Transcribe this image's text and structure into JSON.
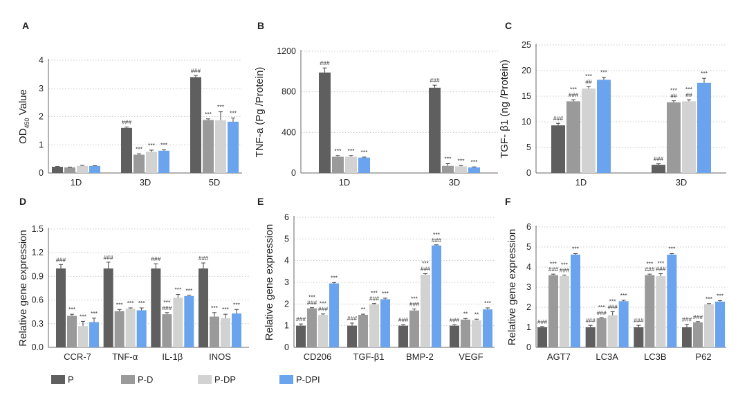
{
  "colors": {
    "P": "#5f5f5f",
    "P-D": "#9a9a9a",
    "P-DP": "#d2d2d2",
    "P-DPI": "#6aa3ee"
  },
  "legend": [
    "P",
    "P-D",
    "P-DP",
    "P-DPI"
  ],
  "chart_data": [
    {
      "panel": "A",
      "type": "bar",
      "ylabel": "OD450 Value",
      "ylim": [
        0,
        4
      ],
      "yticks": [
        0,
        1,
        2,
        3,
        4
      ],
      "categories": [
        "1D",
        "3D",
        "5D"
      ],
      "series": [
        {
          "name": "P",
          "values": [
            0.22,
            1.6,
            3.4
          ],
          "err": [
            0.01,
            0.03,
            0.06
          ],
          "sig": [
            "",
            "###",
            "###"
          ]
        },
        {
          "name": "P-D",
          "values": [
            0.2,
            0.65,
            1.88
          ],
          "err": [
            0.01,
            0.03,
            0.04
          ],
          "sig": [
            "",
            "***",
            "***"
          ]
        },
        {
          "name": "P-DP",
          "values": [
            0.25,
            0.75,
            1.87
          ],
          "err": [
            0.02,
            0.06,
            0.3
          ],
          "sig": [
            "",
            "***",
            "***"
          ]
        },
        {
          "name": "P-DPI",
          "values": [
            0.25,
            0.79,
            1.82
          ],
          "err": [
            0.01,
            0.03,
            0.13
          ],
          "sig": [
            "",
            "***",
            "***"
          ]
        }
      ]
    },
    {
      "panel": "B",
      "type": "bar",
      "ylabel": "TNF-a (Pg /Protein)",
      "ylim": [
        0,
        1200
      ],
      "yticks": [
        0,
        400,
        800,
        1200
      ],
      "categories": [
        "1D",
        "3D"
      ],
      "series": [
        {
          "name": "P",
          "values": [
            990,
            840
          ],
          "err": [
            45,
            25
          ],
          "sig": [
            "###",
            "###"
          ]
        },
        {
          "name": "P-D",
          "values": [
            160,
            70
          ],
          "err": [
            12,
            22
          ],
          "sig": [
            "***",
            "***"
          ]
        },
        {
          "name": "P-DP",
          "values": [
            160,
            65
          ],
          "err": [
            12,
            8
          ],
          "sig": [
            "***",
            "***"
          ]
        },
        {
          "name": "P-DPI",
          "values": [
            152,
            55
          ],
          "err": [
            5,
            5
          ],
          "sig": [
            "***",
            "***"
          ]
        }
      ]
    },
    {
      "panel": "C",
      "type": "bar",
      "ylabel": "TGF- β1 (ng /Protein)",
      "ylim": [
        0,
        25
      ],
      "yticks": [
        0,
        5,
        10,
        15,
        20,
        25
      ],
      "categories": [
        "1D",
        "3D"
      ],
      "series": [
        {
          "name": "P",
          "values": [
            9.3,
            1.6
          ],
          "err": [
            0.4,
            0.2
          ],
          "sig": [
            "###",
            "###"
          ]
        },
        {
          "name": "P-D",
          "values": [
            14.0,
            13.8
          ],
          "err": [
            0.3,
            0.3
          ],
          "sig": [
            "***\n###",
            "***\n##"
          ]
        },
        {
          "name": "P-DP",
          "values": [
            16.5,
            14.0
          ],
          "err": [
            0.4,
            0.3
          ],
          "sig": [
            "***\n##",
            "***\n##"
          ]
        },
        {
          "name": "P-DPI",
          "values": [
            18.2,
            17.6
          ],
          "err": [
            0.5,
            0.9
          ],
          "sig": [
            "***",
            "***"
          ]
        }
      ]
    },
    {
      "panel": "D",
      "type": "bar",
      "ylabel": "Relative gene expression",
      "ylim": [
        0,
        1.5
      ],
      "yticks": [
        "0.0",
        "0.3",
        "0.6",
        "0.9",
        "1.2",
        "1.5"
      ],
      "categories": [
        "CCR-7",
        "TNF-α",
        "IL-1β",
        "INOS"
      ],
      "series": [
        {
          "name": "P",
          "values": [
            1.0,
            1.0,
            1.0,
            1.0
          ],
          "err": [
            0.05,
            0.08,
            0.06,
            0.07
          ],
          "sig": [
            "###",
            "###",
            "###",
            "###"
          ]
        },
        {
          "name": "P-D",
          "values": [
            0.4,
            0.46,
            0.42,
            0.39
          ],
          "err": [
            0.02,
            0.02,
            0.02,
            0.05
          ],
          "sig": [
            "***",
            "***",
            "***\n###",
            "***"
          ]
        },
        {
          "name": "P-DP",
          "values": [
            0.27,
            0.49,
            0.63,
            0.37
          ],
          "err": [
            0.06,
            0.01,
            0.04,
            0.05
          ],
          "sig": [
            "***",
            "***",
            "***",
            "***"
          ]
        },
        {
          "name": "P-DPI",
          "values": [
            0.32,
            0.47,
            0.65,
            0.43
          ],
          "err": [
            0.05,
            0.03,
            0.01,
            0.05
          ],
          "sig": [
            "***",
            "***",
            "***",
            "***"
          ]
        }
      ]
    },
    {
      "panel": "E",
      "type": "bar",
      "ylabel": "Relative gene expression",
      "ylim": [
        0,
        6
      ],
      "yticks": [
        0,
        1,
        2,
        3,
        4,
        5,
        6
      ],
      "categories": [
        "CD206",
        "TGF-β1",
        "BMP-2",
        "VEGF"
      ],
      "series": [
        {
          "name": "P",
          "values": [
            1.0,
            1.0,
            1.0,
            1.0
          ],
          "err": [
            0.08,
            0.12,
            0.05,
            0.04
          ],
          "sig": [
            "###",
            "###",
            "###",
            "###"
          ]
        },
        {
          "name": "P-D",
          "values": [
            1.8,
            1.5,
            1.7,
            1.28
          ],
          "err": [
            0.03,
            0.03,
            0.07,
            0.05
          ],
          "sig": [
            "***\n###",
            "**",
            "***\n###",
            "**"
          ]
        },
        {
          "name": "P-DP",
          "values": [
            1.5,
            1.98,
            3.35,
            1.25
          ],
          "err": [
            0.04,
            0.04,
            0.05,
            0.05
          ],
          "sig": [
            "***\n###",
            "***\n###",
            "***\n###",
            "**"
          ]
        },
        {
          "name": "P-DPI",
          "values": [
            2.95,
            2.22,
            4.7,
            1.75
          ],
          "err": [
            0.04,
            0.05,
            0.03,
            0.07
          ],
          "sig": [
            "***",
            "***",
            "***\n###",
            "***"
          ]
        }
      ]
    },
    {
      "panel": "F",
      "type": "bar",
      "ylabel": "Relative gene expression",
      "ylim": [
        0,
        6
      ],
      "yticks": [
        0,
        1,
        2,
        3,
        4,
        5,
        6
      ],
      "categories": [
        "AGT7",
        "LC3A",
        "LC3B",
        "P62"
      ],
      "series": [
        {
          "name": "P",
          "values": [
            1.0,
            1.0,
            1.0,
            1.0
          ],
          "err": [
            0.04,
            0.1,
            0.1,
            0.15
          ],
          "sig": [
            "###",
            "###",
            "###",
            "###"
          ]
        },
        {
          "name": "P-D",
          "values": [
            3.6,
            1.45,
            3.6,
            1.25
          ],
          "err": [
            0.05,
            0.03,
            0.05,
            0.03
          ],
          "sig": [
            "***\n###",
            "***\n###",
            "***\n###",
            "###"
          ]
        },
        {
          "name": "P-DP",
          "values": [
            3.55,
            1.6,
            3.55,
            2.15
          ],
          "err": [
            0.05,
            0.18,
            0.12,
            0.03
          ],
          "sig": [
            "***\n###",
            "***\n###",
            "***\n###",
            "***"
          ]
        },
        {
          "name": "P-DPI",
          "values": [
            4.62,
            2.3,
            4.62,
            2.28
          ],
          "err": [
            0.05,
            0.05,
            0.05,
            0.05
          ],
          "sig": [
            "***",
            "***",
            "***",
            "***"
          ]
        }
      ]
    }
  ]
}
